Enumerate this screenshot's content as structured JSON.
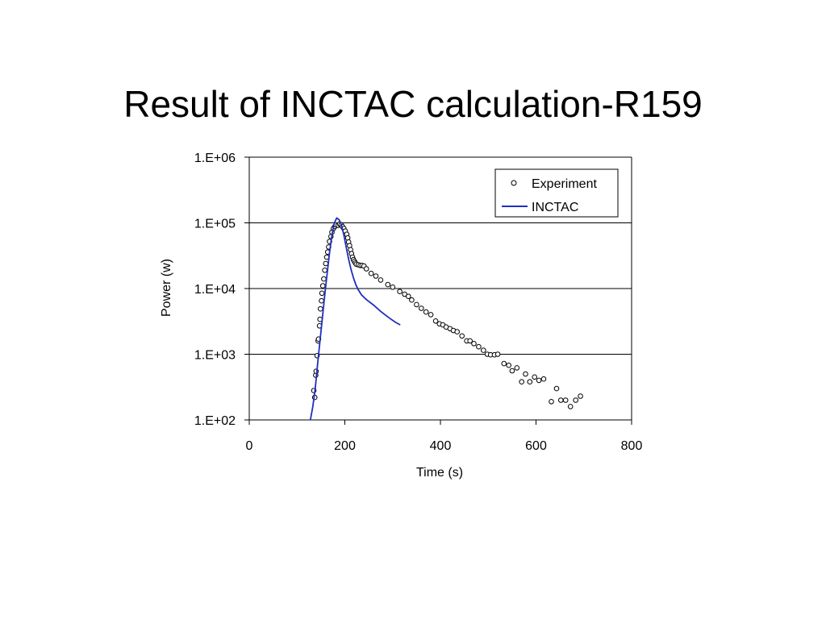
{
  "slide": {
    "title": "Result of INCTAC calculation-R159"
  },
  "colors": {
    "inctac_line": "#1f2fbf",
    "experiment_marker": "#000000",
    "gridline": "#000000",
    "axis": "#000000"
  },
  "chart_data": {
    "type": "scatter",
    "xlabel": "Time (s)",
    "ylabel": "Power (w)",
    "xlim": [
      0,
      800
    ],
    "ylim": [
      100,
      1000000
    ],
    "yscale": "log",
    "x_ticks": [
      0,
      200,
      400,
      600,
      800
    ],
    "x_tick_labels": [
      "0",
      "200",
      "400",
      "600",
      "800"
    ],
    "y_ticks": [
      100,
      1000,
      10000,
      100000,
      1000000
    ],
    "y_tick_labels": [
      "1.E+02",
      "1.E+03",
      "1.E+04",
      "1.E+05",
      "1.E+06"
    ],
    "grid": "horizontal major gridlines",
    "legend": {
      "placement": "top-right",
      "entries": [
        "Experiment",
        "INCTAC"
      ]
    },
    "series": [
      {
        "name": "Experiment",
        "type": "scatter",
        "marker": "open-circle",
        "points": [
          [
            135,
            280
          ],
          [
            137,
            220
          ],
          [
            139,
            480
          ],
          [
            140,
            550
          ],
          [
            142,
            950
          ],
          [
            144,
            1600
          ],
          [
            145,
            1700
          ],
          [
            147,
            2700
          ],
          [
            148,
            3400
          ],
          [
            149,
            4900
          ],
          [
            151,
            6500
          ],
          [
            152,
            8500
          ],
          [
            154,
            11000
          ],
          [
            156,
            14000
          ],
          [
            158,
            19000
          ],
          [
            160,
            24000
          ],
          [
            162,
            30000
          ],
          [
            164,
            36000
          ],
          [
            166,
            43000
          ],
          [
            168,
            52000
          ],
          [
            171,
            62000
          ],
          [
            173,
            72000
          ],
          [
            176,
            82000
          ],
          [
            179,
            88000
          ],
          [
            182,
            93000
          ],
          [
            186,
            92000
          ],
          [
            189,
            96000
          ],
          [
            192,
            94000
          ],
          [
            195,
            88000
          ],
          [
            198,
            82000
          ],
          [
            201,
            75000
          ],
          [
            204,
            67000
          ],
          [
            206,
            59000
          ],
          [
            208,
            51000
          ],
          [
            210,
            45000
          ],
          [
            212,
            39000
          ],
          [
            214,
            34000
          ],
          [
            216,
            30000
          ],
          [
            218,
            27500
          ],
          [
            220,
            26000
          ],
          [
            222,
            24500
          ],
          [
            224,
            23500
          ],
          [
            228,
            23000
          ],
          [
            232,
            22500
          ],
          [
            236,
            22500
          ],
          [
            240,
            22000
          ],
          [
            245,
            20000
          ],
          [
            255,
            17000
          ],
          [
            265,
            15500
          ],
          [
            275,
            13500
          ],
          [
            290,
            11500
          ],
          [
            300,
            10500
          ],
          [
            315,
            9000
          ],
          [
            325,
            8200
          ],
          [
            333,
            7600
          ],
          [
            340,
            6700
          ],
          [
            350,
            5700
          ],
          [
            360,
            5000
          ],
          [
            370,
            4400
          ],
          [
            380,
            4000
          ],
          [
            390,
            3200
          ],
          [
            398,
            2900
          ],
          [
            405,
            2800
          ],
          [
            412,
            2600
          ],
          [
            420,
            2450
          ],
          [
            427,
            2300
          ],
          [
            435,
            2200
          ],
          [
            445,
            1900
          ],
          [
            455,
            1600
          ],
          [
            462,
            1600
          ],
          [
            470,
            1450
          ],
          [
            480,
            1300
          ],
          [
            490,
            1150
          ],
          [
            498,
            1000
          ],
          [
            505,
            980
          ],
          [
            513,
            980
          ],
          [
            520,
            1000
          ],
          [
            533,
            720
          ],
          [
            543,
            680
          ],
          [
            550,
            560
          ],
          [
            560,
            620
          ],
          [
            570,
            380
          ],
          [
            578,
            500
          ],
          [
            587,
            380
          ],
          [
            597,
            450
          ],
          [
            606,
            400
          ],
          [
            616,
            420
          ],
          [
            632,
            190
          ],
          [
            643,
            300
          ],
          [
            652,
            200
          ],
          [
            662,
            200
          ],
          [
            672,
            160
          ],
          [
            683,
            200
          ],
          [
            693,
            230
          ]
        ]
      },
      {
        "name": "INCTAC",
        "type": "line",
        "points": [
          [
            128,
            100
          ],
          [
            133,
            160
          ],
          [
            138,
            300
          ],
          [
            143,
            700
          ],
          [
            148,
            1600
          ],
          [
            153,
            3600
          ],
          [
            158,
            8000
          ],
          [
            163,
            17000
          ],
          [
            168,
            35000
          ],
          [
            173,
            65000
          ],
          [
            178,
            100000
          ],
          [
            183,
            118000
          ],
          [
            188,
            112000
          ],
          [
            193,
            92000
          ],
          [
            198,
            65000
          ],
          [
            203,
            42000
          ],
          [
            208,
            28000
          ],
          [
            213,
            19500
          ],
          [
            218,
            14500
          ],
          [
            223,
            11500
          ],
          [
            228,
            9600
          ],
          [
            235,
            8000
          ],
          [
            245,
            6800
          ],
          [
            260,
            5600
          ],
          [
            275,
            4500
          ],
          [
            290,
            3700
          ],
          [
            305,
            3100
          ],
          [
            316,
            2800
          ]
        ]
      }
    ]
  }
}
